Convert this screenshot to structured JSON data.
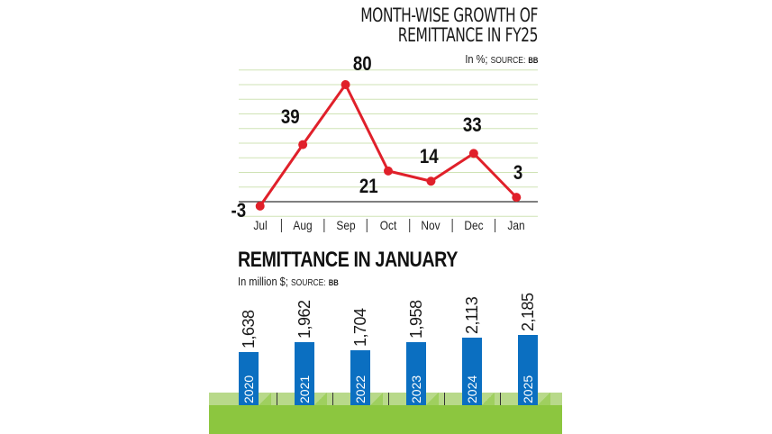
{
  "header": {
    "title_line1": "MONTH-WISE GROWTH OF",
    "title_line2": "REMITTANCE IN FY25",
    "unit": "In %;",
    "source_label": "SOURCE:",
    "source": "BB"
  },
  "section2": {
    "title": "REMITTANCE IN JANUARY",
    "unit": "In million $;",
    "source_label": "SOURCE:",
    "source": "BB"
  },
  "colors": {
    "line": "#e0202a",
    "bar": "#0b6fc1",
    "gridline": "#cfe3b5",
    "ground_light": "#b8d98a",
    "ground_dark": "#8cc63f"
  },
  "chart_data": [
    {
      "type": "line",
      "title": "MONTH-WISE GROWTH OF REMITTANCE IN FY25",
      "subtitle": "In %; SOURCE: BB",
      "xlabel": "",
      "ylabel": "Growth (%)",
      "categories": [
        "Jul",
        "Aug",
        "Sep",
        "Oct",
        "Nov",
        "Dec",
        "Jan"
      ],
      "values": [
        -3,
        39,
        80,
        21,
        14,
        33,
        3
      ],
      "labels": [
        "-3",
        "39",
        "80",
        "21",
        "14",
        "33",
        "3"
      ],
      "ylim": [
        -10,
        90
      ],
      "grid": true,
      "legend": null
    },
    {
      "type": "bar",
      "title": "REMITTANCE IN JANUARY",
      "subtitle": "In million $; SOURCE: BB",
      "xlabel": "",
      "ylabel": "Million $",
      "categories": [
        "2020",
        "2021",
        "2022",
        "2023",
        "2024",
        "2025"
      ],
      "values": [
        1638,
        1962,
        1704,
        1958,
        2113,
        2185
      ],
      "labels": [
        "1,638",
        "1,962",
        "1,704",
        "1,958",
        "2,113",
        "2,185"
      ],
      "grid": false,
      "legend": null
    }
  ]
}
